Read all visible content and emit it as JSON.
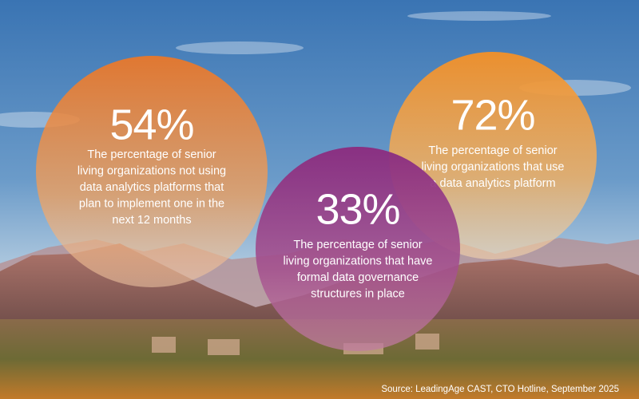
{
  "stats": [
    {
      "value": "54%",
      "description": [
        "The percentage of senior",
        "living organizations not using",
        "data analytics platforms that",
        "plan to implement one in the",
        "next 12 months"
      ]
    },
    {
      "value": "72%",
      "description": [
        "The percentage of senior",
        "living organizations that use",
        "a data analytics platform"
      ]
    },
    {
      "value": "33%",
      "description": [
        "The percentage of senior",
        "living organizations that have",
        "formal data governance",
        "structures in place"
      ]
    }
  ],
  "source": "Source: LeadingAge CAST, CTO Hotline, September 2025"
}
